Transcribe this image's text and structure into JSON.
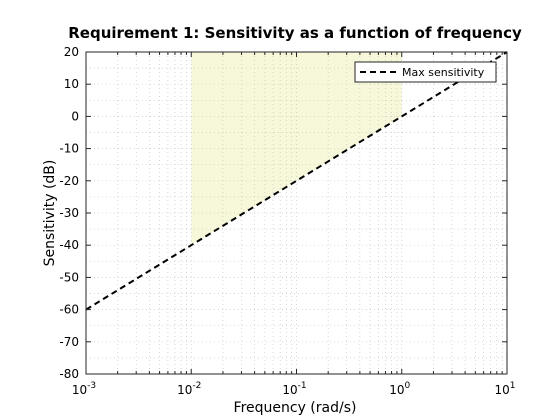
{
  "chart_data": {
    "type": "line",
    "title": "Requirement 1: Sensitivity as a function of frequency",
    "xlabel": "Frequency (rad/s)",
    "ylabel": "Sensitivity (dB)",
    "xscale": "log",
    "xlim": [
      0.001,
      10
    ],
    "ylim": [
      -80,
      20
    ],
    "grid": "minor dotted",
    "legend_position": "top-right",
    "x_ticks": [
      {
        "base": "10",
        "exp": "-3",
        "value": 0.001
      },
      {
        "base": "10",
        "exp": "-2",
        "value": 0.01
      },
      {
        "base": "10",
        "exp": "-1",
        "value": 0.1
      },
      {
        "base": "10",
        "exp": "0",
        "value": 1
      },
      {
        "base": "10",
        "exp": "1",
        "value": 10
      }
    ],
    "y_ticks": [
      {
        "label": "20",
        "value": 20
      },
      {
        "label": "10",
        "value": 10
      },
      {
        "label": "0",
        "value": 0
      },
      {
        "label": "-10",
        "value": -10
      },
      {
        "label": "-20",
        "value": -20
      },
      {
        "label": "-30",
        "value": -30
      },
      {
        "label": "-40",
        "value": -40
      },
      {
        "label": "-50",
        "value": -50
      },
      {
        "label": "-60",
        "value": -60
      },
      {
        "label": "-70",
        "value": -70
      },
      {
        "label": "-80",
        "value": -80
      }
    ],
    "series": [
      {
        "name": "Max sensitivity",
        "style": "dashed",
        "color": "#000000",
        "x": [
          0.001,
          0.01,
          0.1,
          1,
          10
        ],
        "y": [
          -60,
          -40,
          -20,
          0,
          20
        ]
      }
    ],
    "shaded_region": {
      "x": [
        0.01,
        1
      ],
      "lower": [
        -40,
        0
      ],
      "upper": [
        20,
        20
      ],
      "color": "#f7f7d9"
    }
  }
}
